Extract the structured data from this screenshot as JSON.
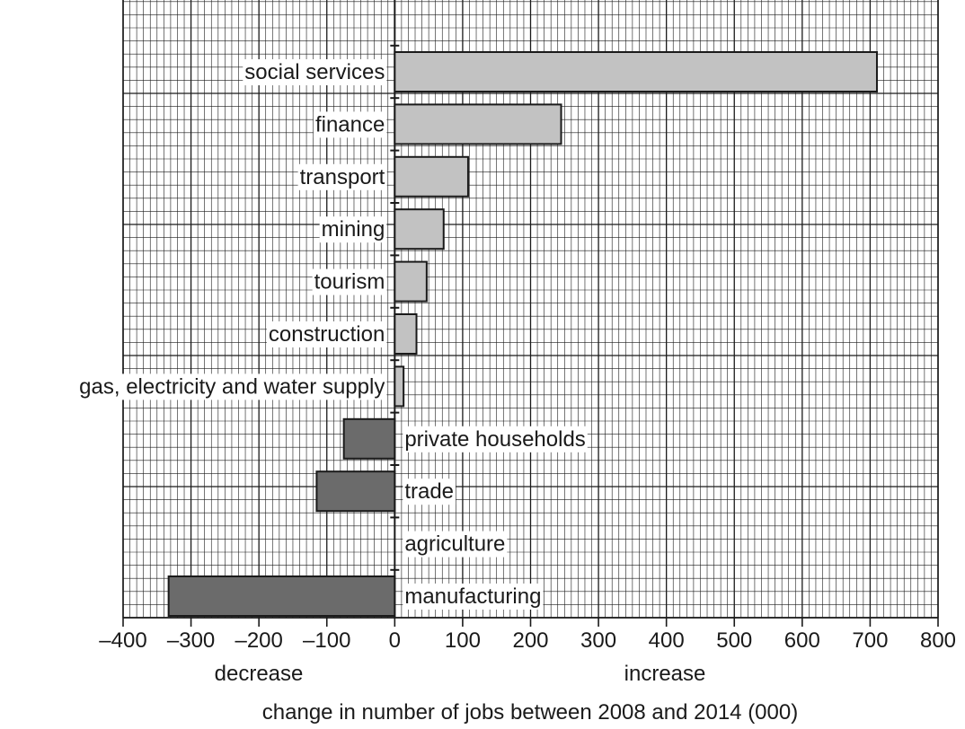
{
  "chart_data": {
    "type": "bar",
    "orientation": "horizontal",
    "title": "",
    "xlabel": "change in number of jobs between 2008 and 2014 (000)",
    "ylabel": "",
    "xlim": [
      -400,
      800
    ],
    "xticks": [
      -400,
      -300,
      -200,
      -100,
      0,
      100,
      200,
      300,
      400,
      500,
      600,
      700,
      800
    ],
    "xtick_labels": [
      "–400",
      "–300",
      "–200",
      "–100",
      "0",
      "100",
      "200",
      "300",
      "400",
      "500",
      "600",
      "700",
      "800"
    ],
    "negative_side_label": "decrease",
    "positive_side_label": "increase",
    "grid": true,
    "categories": [
      "social services",
      "finance",
      "transport",
      "mining",
      "tourism",
      "construction",
      "gas, electricity and water supply",
      "private households",
      "trade",
      "agriculture",
      "manufacturing"
    ],
    "values": [
      710,
      245,
      108,
      72,
      47,
      32,
      13,
      -75,
      -115,
      0,
      -333
    ],
    "colors": {
      "positive": "#c2c2c2",
      "negative": "#6b6b6b",
      "grid": "#1a1a1a",
      "border": "#1a1a1a"
    }
  }
}
